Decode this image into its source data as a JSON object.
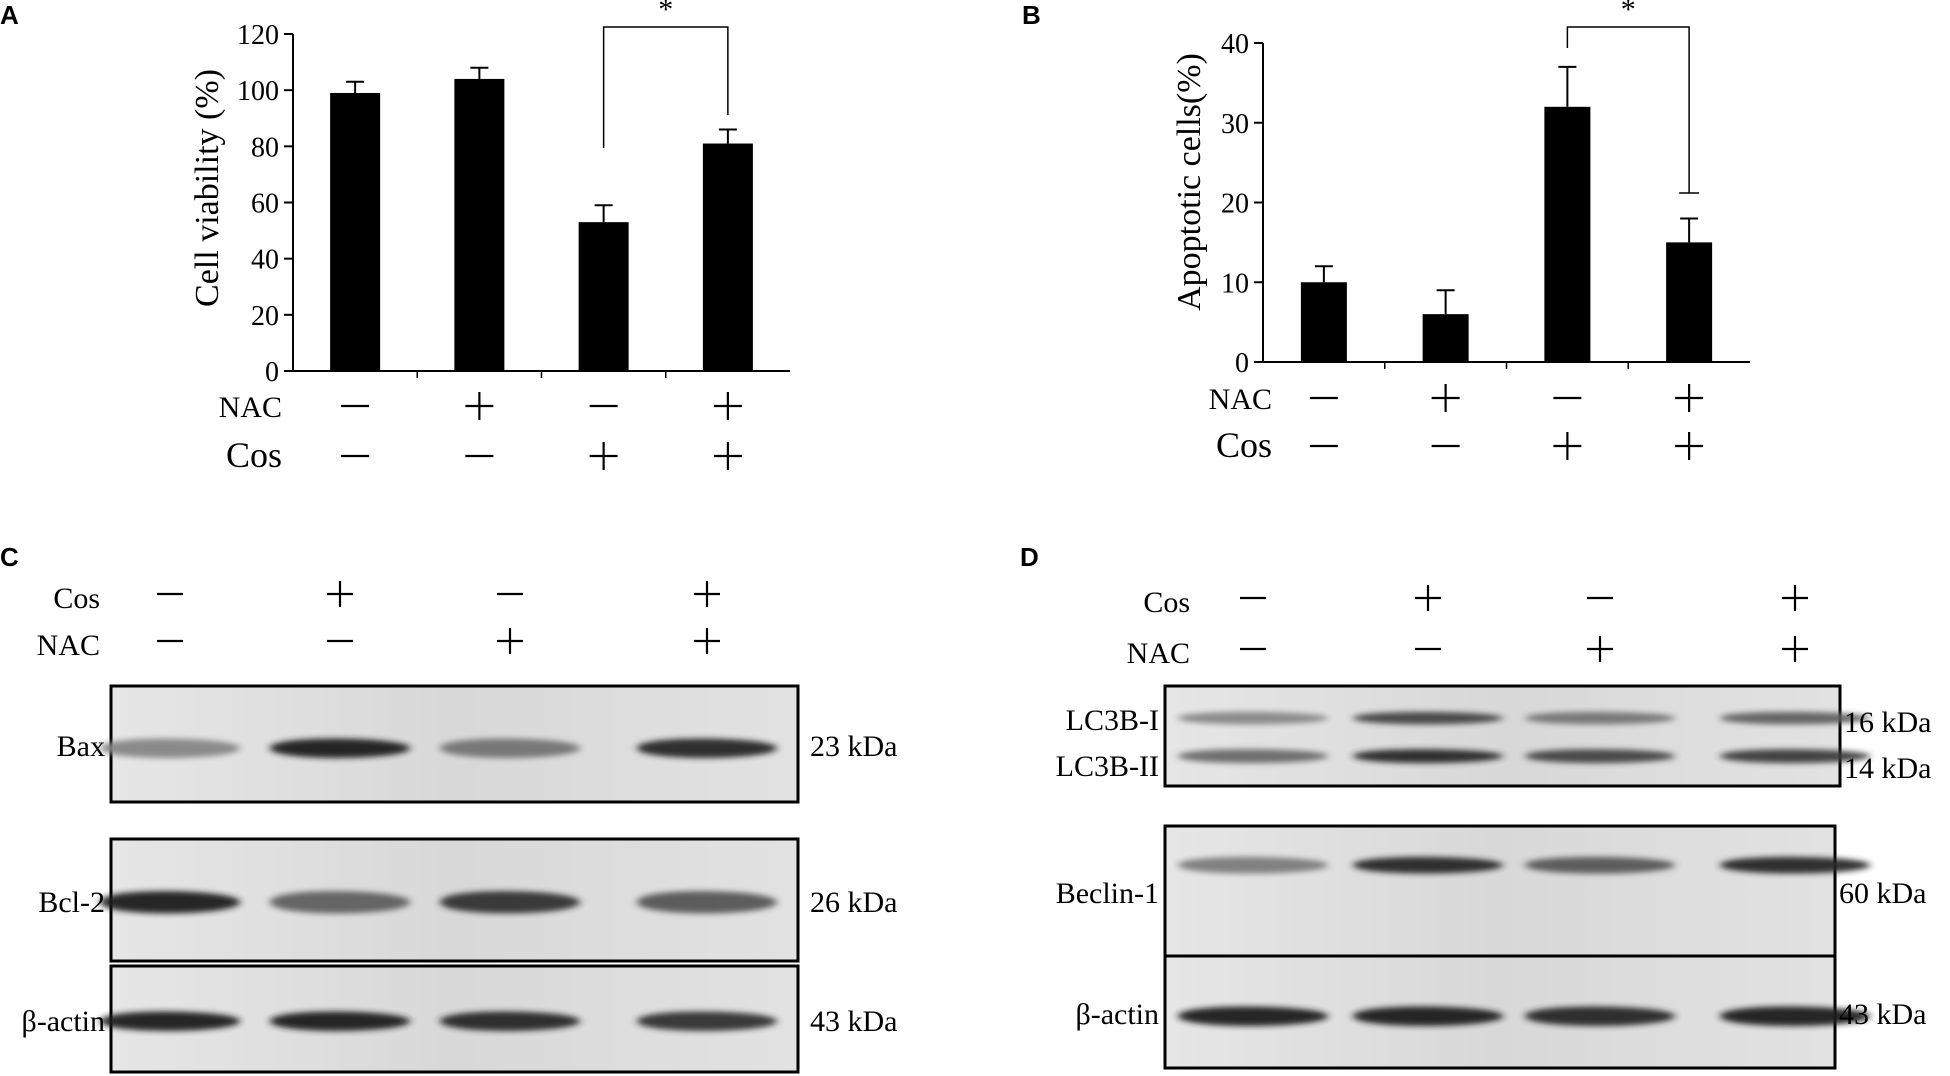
{
  "chart_data": [
    {
      "panel": "A",
      "type": "bar",
      "ylabel": "Cell viability (%)",
      "yticks": [
        0,
        20,
        40,
        60,
        80,
        100,
        120
      ],
      "ylim": [
        0,
        120
      ],
      "values": [
        99,
        104,
        53,
        81
      ],
      "errors": [
        4,
        4,
        6,
        5
      ],
      "conditions": [
        {
          "label": "NAC",
          "signs": [
            "−",
            "+",
            "−",
            "+"
          ]
        },
        {
          "label": "Cos",
          "signs": [
            "−",
            "−",
            "+",
            "+"
          ]
        }
      ],
      "significance": {
        "between": [
          2,
          3
        ],
        "label": "*"
      },
      "color": "#000000"
    },
    {
      "panel": "B",
      "type": "bar",
      "ylabel": "Apoptotic cells(%)",
      "yticks": [
        0,
        10,
        20,
        30,
        40
      ],
      "ylim": [
        0,
        40
      ],
      "values": [
        10,
        6,
        32,
        15
      ],
      "errors": [
        2,
        3,
        5,
        3
      ],
      "conditions": [
        {
          "label": "NAC",
          "signs": [
            "−",
            "+",
            "−",
            "+"
          ]
        },
        {
          "label": "Cos",
          "signs": [
            "−",
            "−",
            "+",
            "+"
          ]
        }
      ],
      "significance": {
        "between": [
          2,
          3
        ],
        "label": "*"
      },
      "color": "#000000"
    },
    {
      "panel": "C",
      "type": "western-blot",
      "conditions": [
        {
          "label": "Cos",
          "signs": [
            "−",
            "+",
            "−",
            "+"
          ]
        },
        {
          "label": "NAC",
          "signs": [
            "−",
            "−",
            "+",
            "+"
          ]
        }
      ],
      "blots": [
        {
          "label": "Bax",
          "size": "23 kDa",
          "intensity": [
            0.35,
            0.9,
            0.45,
            0.85
          ]
        },
        {
          "label": "Bcl-2",
          "size": "26 kDa",
          "intensity": [
            0.9,
            0.55,
            0.8,
            0.6
          ]
        },
        {
          "label": "β-actin",
          "size": "43 kDa",
          "intensity": [
            0.9,
            0.9,
            0.85,
            0.8
          ]
        }
      ]
    },
    {
      "panel": "D",
      "type": "western-blot",
      "conditions": [
        {
          "label": "Cos",
          "signs": [
            "−",
            "+",
            "−",
            "+"
          ]
        },
        {
          "label": "NAC",
          "signs": [
            "−",
            "−",
            "+",
            "+"
          ]
        }
      ],
      "blots": [
        {
          "labels": [
            "LC3B-I",
            "LC3B-II"
          ],
          "sizes": [
            "16 kDa",
            "14 kDa"
          ],
          "intensity_top": [
            0.35,
            0.7,
            0.45,
            0.55
          ],
          "intensity_bottom": [
            0.5,
            0.85,
            0.7,
            0.75
          ]
        },
        {
          "label": "Beclin-1",
          "size": "60 kDa",
          "intensity": [
            0.4,
            0.85,
            0.6,
            0.85
          ]
        },
        {
          "label": "β-actin",
          "size": "43 kDa",
          "intensity": [
            0.9,
            0.9,
            0.85,
            0.9
          ]
        }
      ]
    }
  ]
}
